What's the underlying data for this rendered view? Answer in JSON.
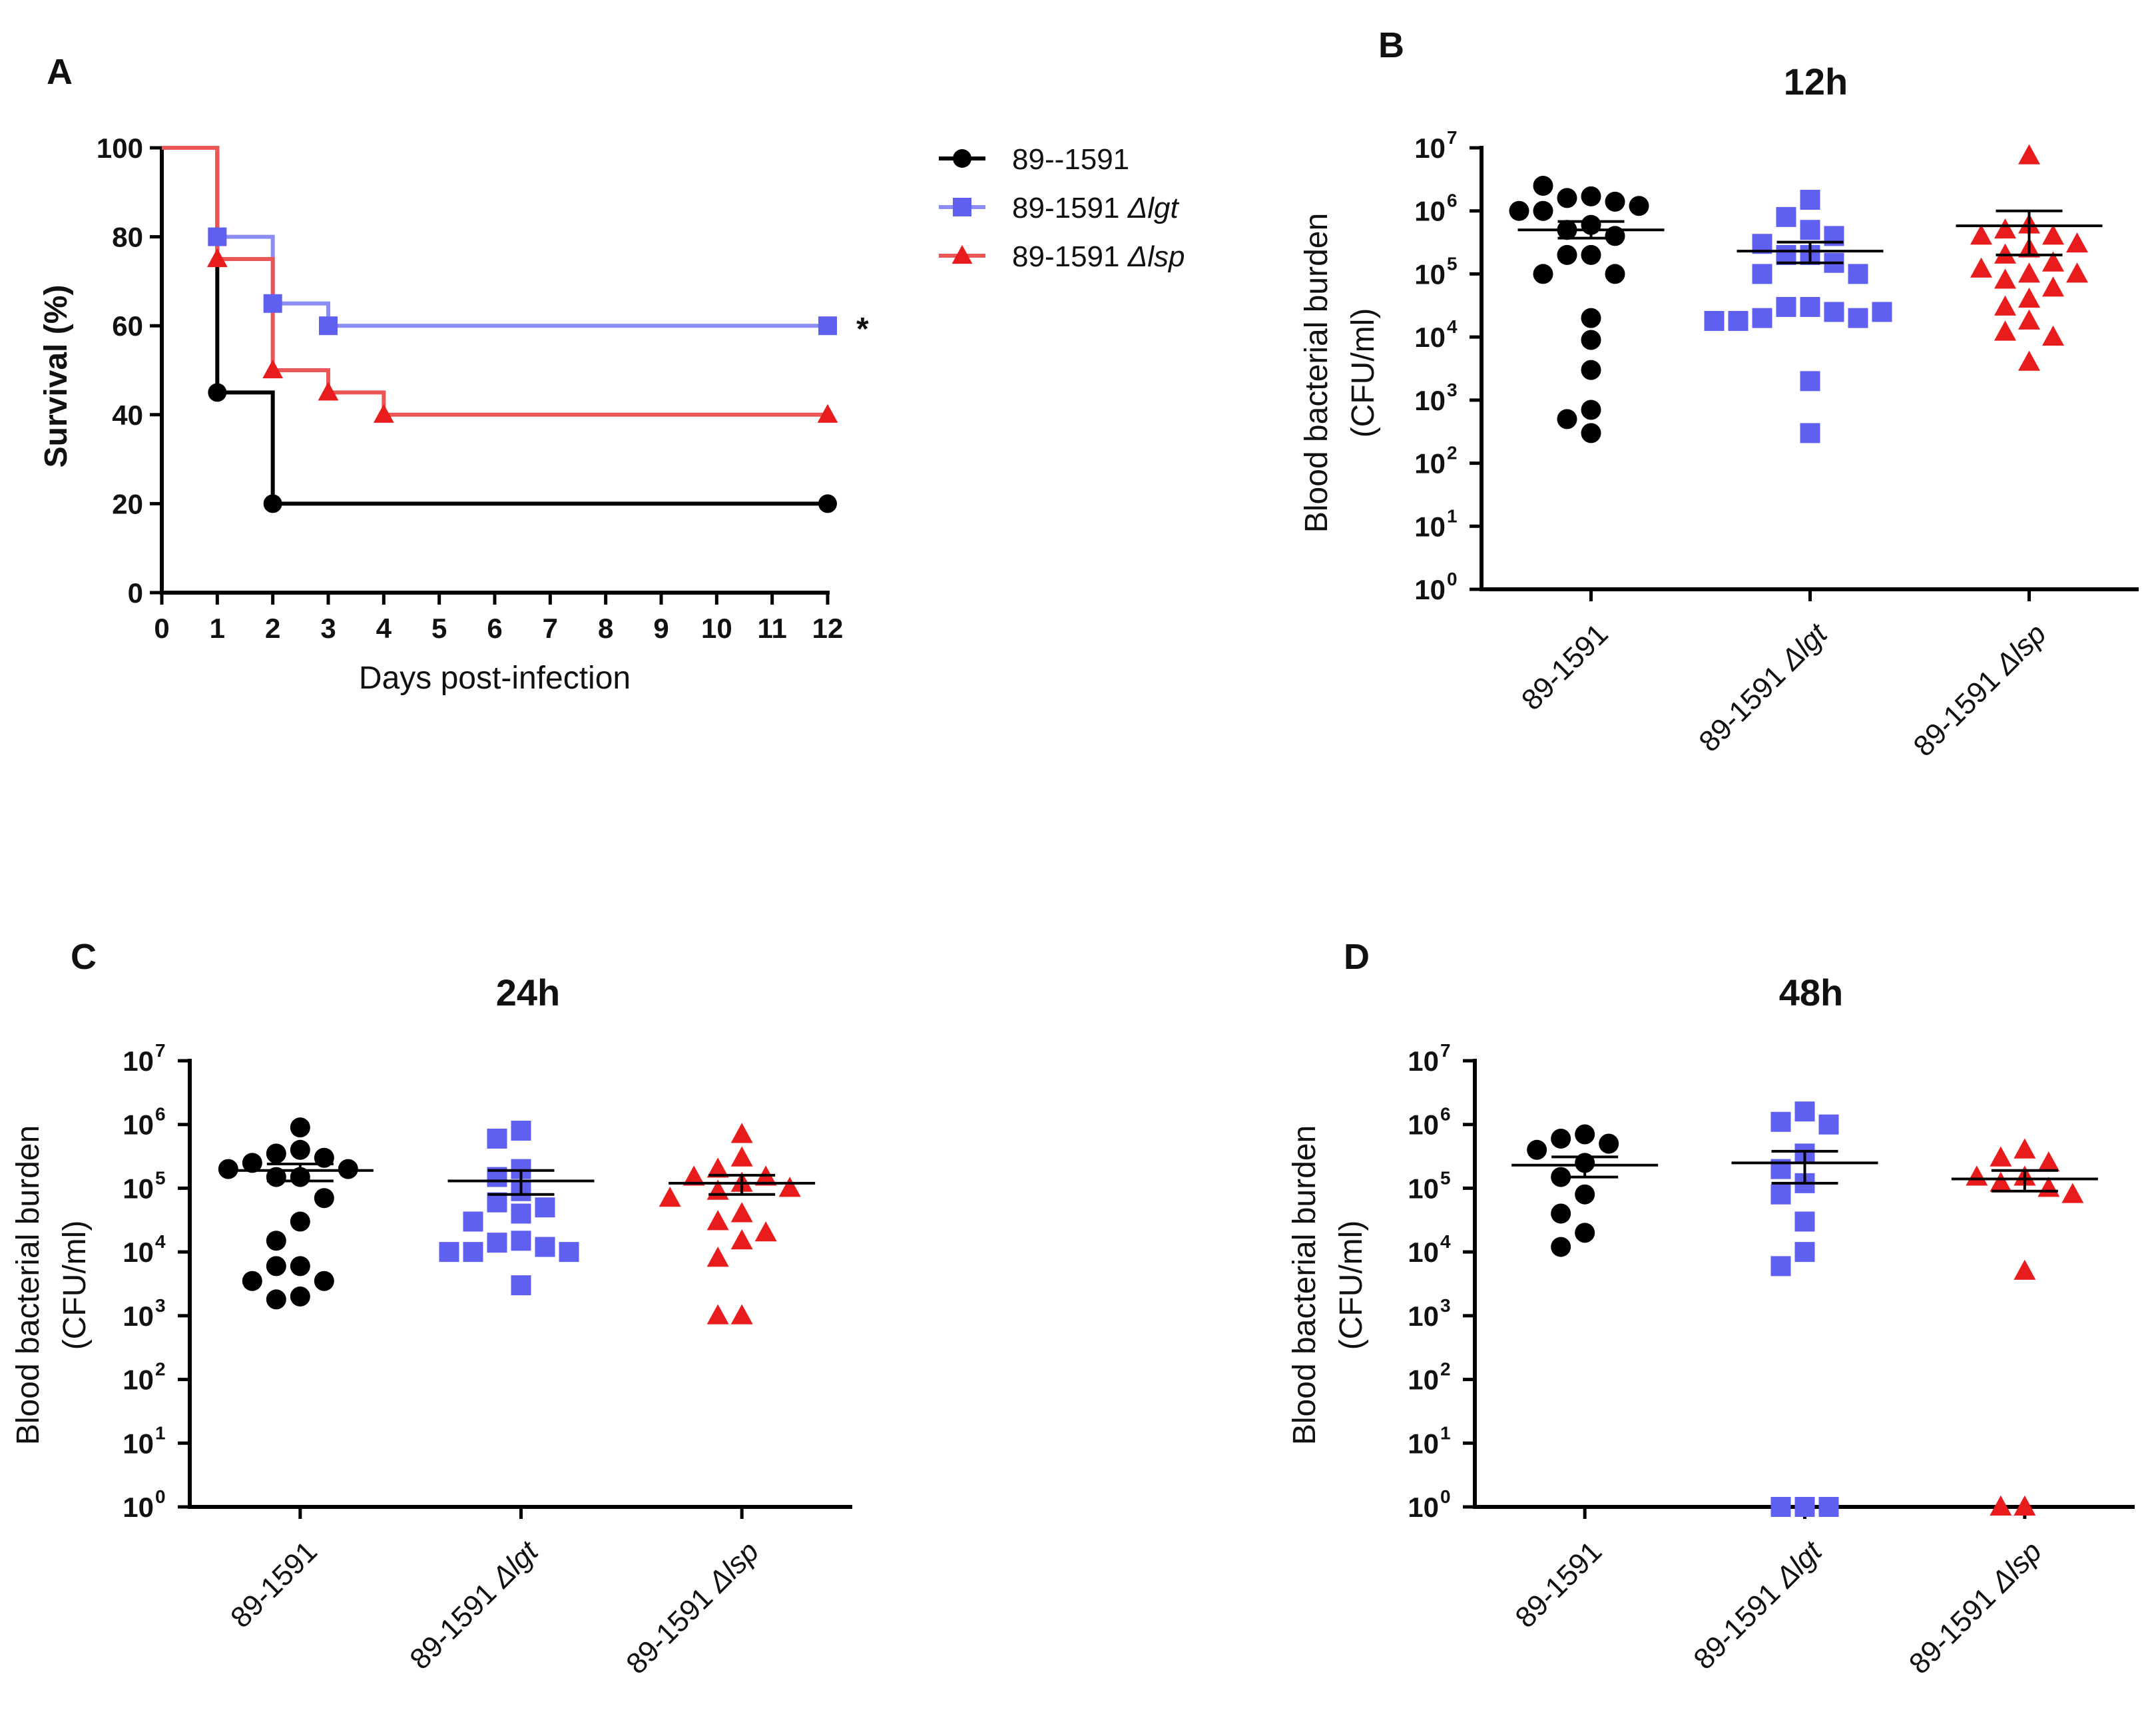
{
  "colors": {
    "black": "#000000",
    "blue": "#5f5ff0",
    "blue_line": "#8c8cf5",
    "red": "#e81c1c",
    "red_line": "#ea5555"
  },
  "panel_A": {
    "letter": "A",
    "legend": [
      {
        "label": "89--1591",
        "sub": "",
        "marker": "circle",
        "color_key": "black"
      },
      {
        "label": "89-1591 ",
        "sub": "Δlgt",
        "marker": "square",
        "color_key": "blue"
      },
      {
        "label": "89-1591 ",
        "sub": "Δlsp",
        "marker": "triangle",
        "color_key": "red"
      }
    ],
    "significance": "*"
  },
  "panels_scatter": [
    {
      "letter": "B",
      "title": "12h"
    },
    {
      "letter": "C",
      "title": "24h"
    },
    {
      "letter": "D",
      "title": "48h"
    }
  ],
  "chart_data": [
    {
      "type": "line",
      "kind": "kaplan-meier",
      "title": "",
      "xlabel": "Days post-infection",
      "ylabel": "Survival (%)",
      "xlim": [
        0,
        12
      ],
      "ylim": [
        0,
        100
      ],
      "xticks": [
        "0",
        "1",
        "2",
        "3",
        "4",
        "5",
        "6",
        "7",
        "8",
        "9",
        "10",
        "11",
        "12"
      ],
      "yticks": [
        "0",
        "20",
        "40",
        "60",
        "80",
        "100"
      ],
      "series": [
        {
          "name": "89--1591",
          "marker": "circle",
          "color_key": "black",
          "line_key": "black",
          "steps": [
            [
              0,
              100
            ],
            [
              1,
              45
            ],
            [
              2,
              20
            ],
            [
              12,
              20
            ]
          ],
          "markers": [
            [
              1,
              45
            ],
            [
              2,
              20
            ],
            [
              12,
              20
            ]
          ]
        },
        {
          "name": "89-1591 Δlgt",
          "marker": "square",
          "color_key": "blue",
          "line_key": "blue_line",
          "steps": [
            [
              0,
              100
            ],
            [
              1,
              80
            ],
            [
              2,
              65
            ],
            [
              3,
              60
            ],
            [
              12,
              60
            ]
          ],
          "markers": [
            [
              1,
              80
            ],
            [
              2,
              65
            ],
            [
              3,
              60
            ],
            [
              12,
              60
            ]
          ]
        },
        {
          "name": "89-1591 Δlsp",
          "marker": "triangle",
          "color_key": "red",
          "line_key": "red_line",
          "steps": [
            [
              0,
              100
            ],
            [
              1,
              75
            ],
            [
              2,
              50
            ],
            [
              3,
              45
            ],
            [
              4,
              40
            ],
            [
              12,
              40
            ]
          ],
          "markers": [
            [
              1,
              75
            ],
            [
              2,
              50
            ],
            [
              3,
              45
            ],
            [
              4,
              40
            ],
            [
              12,
              40
            ]
          ]
        }
      ],
      "annotation": "*"
    },
    {
      "type": "scatter",
      "panel": "B",
      "title": "12h",
      "ylabel": [
        "Blood bacterial burden",
        "(CFU/ml)"
      ],
      "yscale": "log10",
      "ylim_exp": [
        0,
        7
      ],
      "yticks": [
        "0",
        "1",
        "2",
        "3",
        "4",
        "5",
        "6",
        "7"
      ],
      "tick_base": "10",
      "categories": [
        {
          "prefix": "89-1591",
          "suffix": ""
        },
        {
          "prefix": "89-1591 ",
          "suffix": "Δlgt"
        },
        {
          "prefix": "89-1591 ",
          "suffix": "Δlsp"
        }
      ],
      "groups": [
        {
          "name": "89-1591",
          "marker": "circle",
          "color_key": "black",
          "values": [
            1700000,
            1600000,
            1400000,
            2500000,
            1200000,
            1000000,
            600000,
            500000,
            200000,
            200000,
            400000,
            1000000,
            100000,
            100000,
            20000,
            9000,
            3000,
            700,
            500,
            300
          ],
          "mean": 500000,
          "sem_low": 370000,
          "sem_high": 680000
        },
        {
          "name": "89-1591 Δlgt",
          "marker": "square",
          "color_key": "blue",
          "values": [
            1500000,
            800000,
            500000,
            400000,
            200000,
            200000,
            150000,
            100000,
            100000,
            300000,
            30000,
            30000,
            25000,
            20000,
            20000,
            18000,
            25000,
            18000,
            2000,
            300
          ],
          "mean": 230000,
          "sem_low": 150000,
          "sem_high": 320000
        },
        {
          "name": "89-1591 Δlsp",
          "marker": "triangle",
          "color_key": "red",
          "values": [
            7500000,
            600000,
            500000,
            400000,
            400000,
            300000,
            250000,
            200000,
            150000,
            120000,
            100000,
            100000,
            80000,
            60000,
            40000,
            30000,
            18000,
            12000,
            10000,
            4000
          ],
          "mean": 580000,
          "sem_low": 200000,
          "sem_high": 1000000
        }
      ]
    },
    {
      "type": "scatter",
      "panel": "C",
      "title": "24h",
      "ylabel": [
        "Blood bacterial burden",
        "(CFU/ml)"
      ],
      "yscale": "log10",
      "ylim_exp": [
        0,
        7
      ],
      "yticks": [
        "0",
        "1",
        "2",
        "3",
        "4",
        "5",
        "6",
        "7"
      ],
      "tick_base": "10",
      "categories": [
        {
          "prefix": "89-1591",
          "suffix": ""
        },
        {
          "prefix": "89-1591 ",
          "suffix": "Δlgt"
        },
        {
          "prefix": "89-1591 ",
          "suffix": "Δlsp"
        }
      ],
      "groups": [
        {
          "name": "89-1591",
          "marker": "circle",
          "color_key": "black",
          "values": [
            900000,
            400000,
            350000,
            300000,
            250000,
            200000,
            200000,
            150000,
            150000,
            70000,
            30000,
            15000,
            6000,
            6000,
            3500,
            3500,
            2000,
            1800
          ],
          "mean": 190000,
          "sem_low": 130000,
          "sem_high": 240000
        },
        {
          "name": "89-1591 Δlgt",
          "marker": "square",
          "color_key": "blue",
          "values": [
            800000,
            600000,
            200000,
            150000,
            90000,
            60000,
            50000,
            40000,
            30000,
            15000,
            14000,
            12000,
            10000,
            10000,
            10000,
            3000
          ],
          "mean": 130000,
          "sem_low": 80000,
          "sem_high": 190000
        },
        {
          "name": "89-1591 Δlsp",
          "marker": "triangle",
          "color_key": "red",
          "values": [
            700000,
            300000,
            200000,
            150000,
            150000,
            120000,
            100000,
            90000,
            70000,
            40000,
            30000,
            20000,
            15000,
            8000,
            1000,
            1000
          ],
          "mean": 120000,
          "sem_low": 80000,
          "sem_high": 160000
        }
      ]
    },
    {
      "type": "scatter",
      "panel": "D",
      "title": "48h",
      "ylabel": [
        "Blood bacterial burden",
        "(CFU/ml)"
      ],
      "yscale": "log10",
      "ylim_exp": [
        0,
        7
      ],
      "yticks": [
        "0",
        "1",
        "2",
        "3",
        "4",
        "5",
        "6",
        "7"
      ],
      "tick_base": "10",
      "categories": [
        {
          "prefix": "89-1591",
          "suffix": ""
        },
        {
          "prefix": "89-1591 ",
          "suffix": "Δlgt"
        },
        {
          "prefix": "89-1591 ",
          "suffix": "Δlsp"
        }
      ],
      "groups": [
        {
          "name": "89-1591",
          "marker": "circle",
          "color_key": "black",
          "values": [
            700000,
            600000,
            500000,
            400000,
            250000,
            150000,
            80000,
            40000,
            20000,
            12000
          ],
          "mean": 230000,
          "sem_low": 150000,
          "sem_high": 310000
        },
        {
          "name": "89-1591 Δlgt",
          "marker": "square",
          "color_key": "blue",
          "values": [
            1600000,
            1100000,
            1000000,
            350000,
            200000,
            120000,
            80000,
            30000,
            10000,
            6000,
            1,
            1,
            1
          ],
          "mean": 250000,
          "sem_low": 120000,
          "sem_high": 380000
        },
        {
          "name": "89-1591 Δlsp",
          "marker": "triangle",
          "color_key": "red",
          "values": [
            400000,
            300000,
            250000,
            150000,
            150000,
            120000,
            100000,
            80000,
            5000,
            1,
            1
          ],
          "mean": 140000,
          "sem_low": 90000,
          "sem_high": 190000
        }
      ]
    }
  ]
}
